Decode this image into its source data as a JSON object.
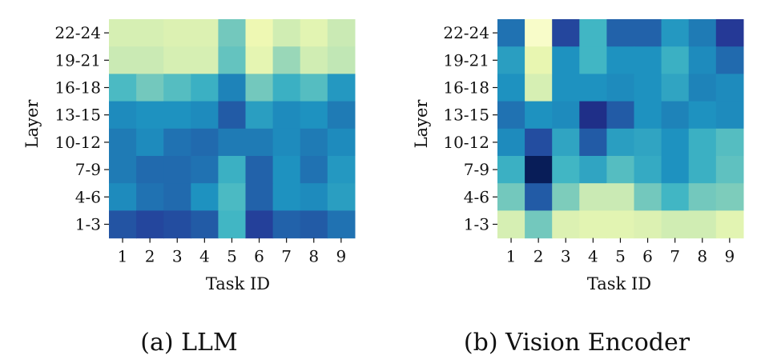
{
  "chart_data": [
    {
      "type": "heatmap",
      "caption": "(a) LLM",
      "xlabel": "Task ID",
      "ylabel": "Layer",
      "x_categories": [
        "1",
        "2",
        "3",
        "4",
        "5",
        "6",
        "7",
        "8",
        "9"
      ],
      "y_categories": [
        "22-24",
        "19-21",
        "16-18",
        "13-15",
        "10-12",
        "7-9",
        "4-6",
        "1-3"
      ],
      "colormap": "YlGnBu",
      "values": [
        [
          0.2,
          0.2,
          0.18,
          0.18,
          0.4,
          0.12,
          0.22,
          0.16,
          0.24
        ],
        [
          0.24,
          0.24,
          0.2,
          0.2,
          0.43,
          0.15,
          0.33,
          0.22,
          0.26
        ],
        [
          0.48,
          0.4,
          0.46,
          0.52,
          0.66,
          0.4,
          0.52,
          0.46,
          0.6
        ],
        [
          0.64,
          0.62,
          0.62,
          0.64,
          0.76,
          0.58,
          0.64,
          0.62,
          0.68
        ],
        [
          0.68,
          0.64,
          0.7,
          0.72,
          0.68,
          0.68,
          0.64,
          0.68,
          0.64
        ],
        [
          0.68,
          0.72,
          0.72,
          0.7,
          0.52,
          0.74,
          0.62,
          0.7,
          0.6
        ],
        [
          0.64,
          0.7,
          0.72,
          0.62,
          0.48,
          0.74,
          0.62,
          0.64,
          0.58
        ],
        [
          0.78,
          0.82,
          0.8,
          0.76,
          0.5,
          0.84,
          0.74,
          0.76,
          0.7
        ]
      ]
    },
    {
      "type": "heatmap",
      "caption": "(b) Vision Encoder",
      "xlabel": "Task ID",
      "ylabel": "Layer",
      "x_categories": [
        "1",
        "2",
        "3",
        "4",
        "5",
        "6",
        "7",
        "8",
        "9"
      ],
      "y_categories": [
        "22-24",
        "19-21",
        "16-18",
        "13-15",
        "10-12",
        "7-9",
        "4-6",
        "1-3"
      ],
      "colormap": "YlGnBu",
      "values": [
        [
          0.7,
          0.05,
          0.82,
          0.5,
          0.74,
          0.74,
          0.6,
          0.68,
          0.86
        ],
        [
          0.58,
          0.14,
          0.62,
          0.5,
          0.62,
          0.62,
          0.52,
          0.64,
          0.72
        ],
        [
          0.62,
          0.2,
          0.62,
          0.62,
          0.64,
          0.62,
          0.56,
          0.66,
          0.64
        ],
        [
          0.7,
          0.62,
          0.64,
          0.9,
          0.76,
          0.62,
          0.66,
          0.62,
          0.64
        ],
        [
          0.64,
          0.8,
          0.56,
          0.76,
          0.58,
          0.56,
          0.62,
          0.52,
          0.46
        ],
        [
          0.52,
          1.0,
          0.5,
          0.56,
          0.46,
          0.54,
          0.62,
          0.52,
          0.44
        ],
        [
          0.4,
          0.76,
          0.38,
          0.24,
          0.24,
          0.4,
          0.5,
          0.4,
          0.38
        ],
        [
          0.2,
          0.4,
          0.18,
          0.16,
          0.16,
          0.18,
          0.22,
          0.22,
          0.16
        ]
      ]
    }
  ]
}
